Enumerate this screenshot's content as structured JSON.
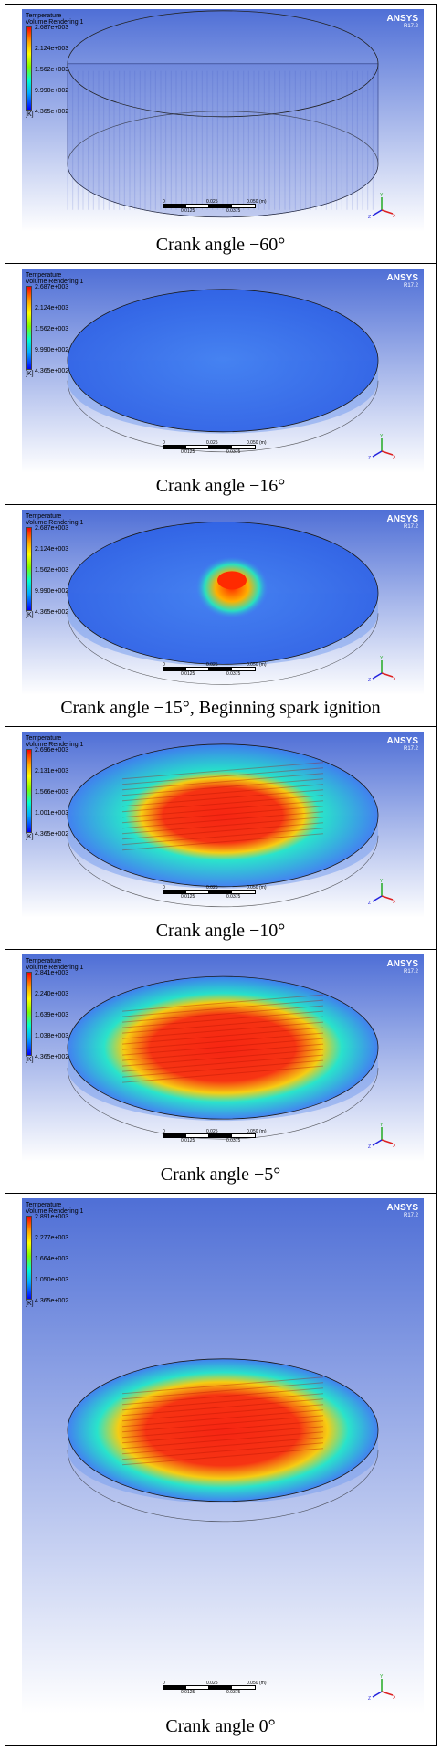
{
  "legend": {
    "title_line1": "Temperature",
    "title_line2": "Volume Rendering 1",
    "unit": "[K]"
  },
  "brand": {
    "name": "ANSYS",
    "version": "R17.2"
  },
  "scale": {
    "zero": "0",
    "mid": "0.025",
    "end": "0.050",
    "unit": "(m)",
    "q1": "0.0125",
    "q3": "0.0375"
  },
  "triad_labels": {
    "x": "X",
    "y": "Y",
    "z": "Z"
  },
  "frames": [
    {
      "caption": "Crank  angle  −60°",
      "ticks": [
        "2.687e+003",
        "2.124e+003",
        "1.562e+003",
        "9.990e+002",
        "4.365e+002"
      ],
      "state": "empty",
      "hot_fraction": 0.0
    },
    {
      "caption": "Crank  angle  −16°",
      "ticks": [
        "2.687e+003",
        "2.124e+003",
        "1.562e+003",
        "9.990e+002",
        "4.365e+002"
      ],
      "state": "compressed",
      "hot_fraction": 0.0
    },
    {
      "caption": "Crank  angle  −15°,  Beginning  spark  ignition",
      "ticks": [
        "2.687e+003",
        "2.124e+003",
        "1.562e+003",
        "9.990e+002",
        "4.365e+002"
      ],
      "state": "ignition",
      "hot_fraction": 0.12
    },
    {
      "caption": "Crank  angle  −10°",
      "ticks": [
        "2.696e+003",
        "2.131e+003",
        "1.566e+003",
        "1.001e+003",
        "4.365e+002"
      ],
      "state": "burning",
      "hot_fraction": 0.7
    },
    {
      "caption": "Crank  angle  −5°",
      "ticks": [
        "2.841e+003",
        "2.240e+003",
        "1.639e+003",
        "1.038e+003",
        "4.365e+002"
      ],
      "state": "burning",
      "hot_fraction": 0.85
    },
    {
      "caption": "Crank  angle  0°",
      "ticks": [
        "2.891e+003",
        "2.277e+003",
        "1.664e+003",
        "1.050e+003",
        "4.365e+002"
      ],
      "state": "burning",
      "hot_fraction": 0.9
    }
  ]
}
